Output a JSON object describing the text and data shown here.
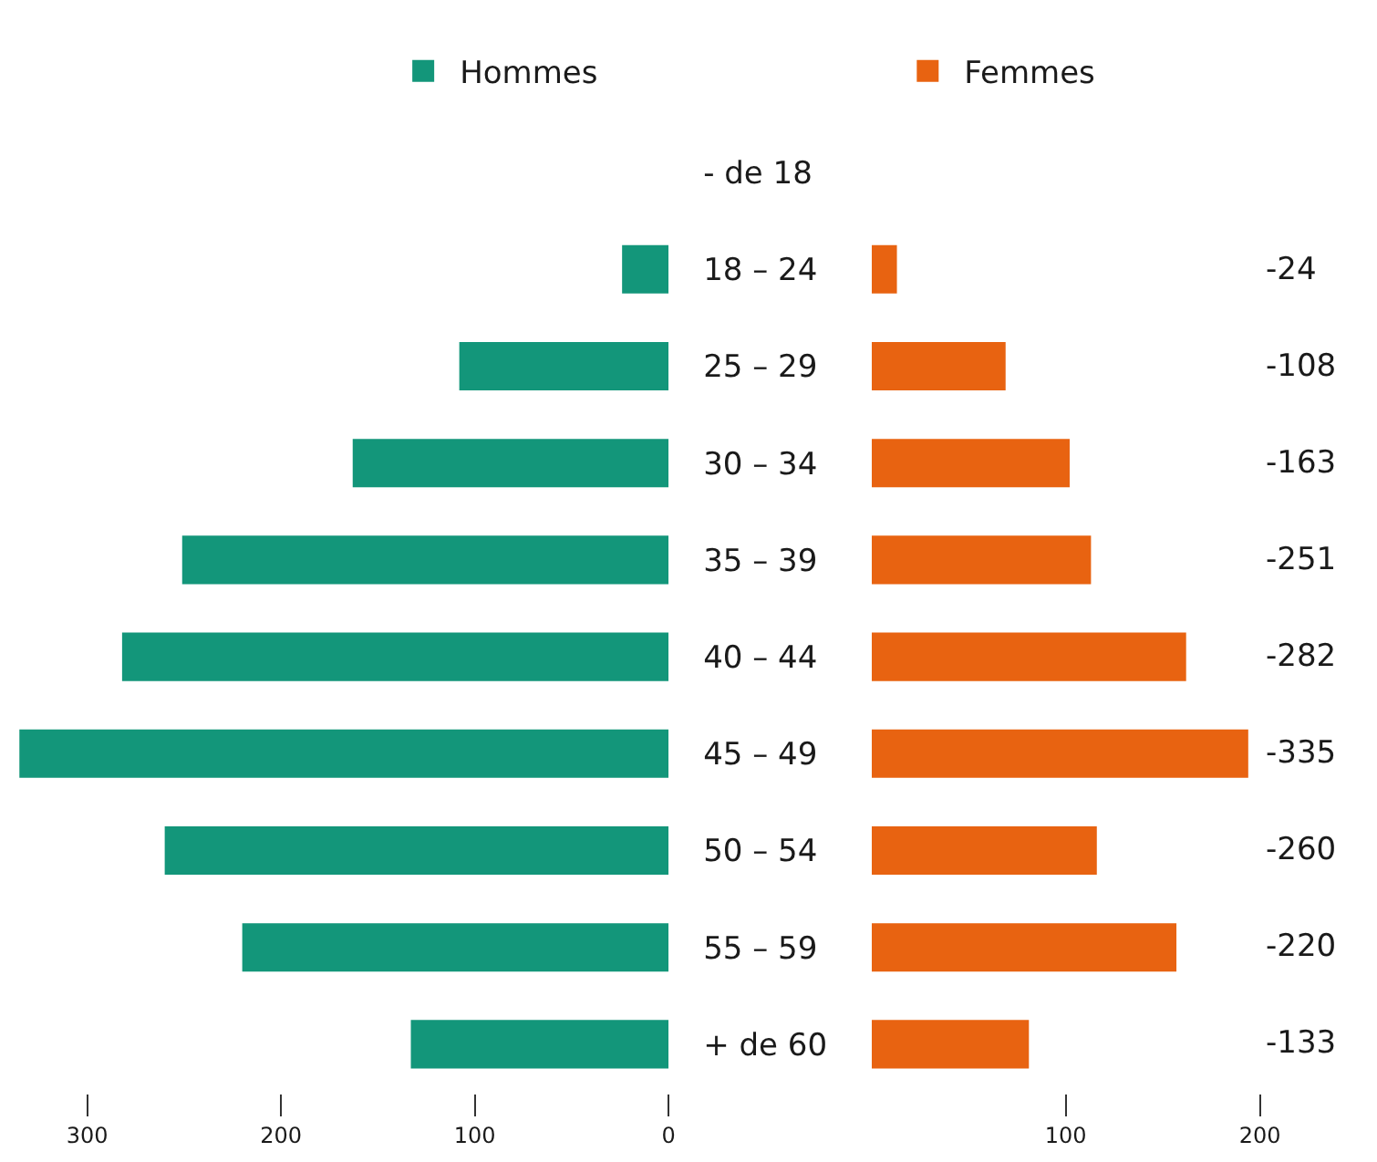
{
  "chart_data": [
    {
      "type": "bar",
      "orientation": "horizontal",
      "categories": [
        "- de 18",
        "18 – 24",
        "25 – 29",
        "30 – 34",
        "35 – 39",
        "40 – 44",
        "45 – 49",
        "50 – 54",
        "55 – 59",
        "+ de 60"
      ],
      "series": [
        {
          "name": "Hommes",
          "color": "#13967a",
          "values": [
            null,
            -24,
            -108,
            -163,
            -251,
            -282,
            -335,
            -260,
            -220,
            -133
          ]
        }
      ],
      "annotations": [
        "-24",
        "-108",
        "-163",
        "-251",
        "-282",
        "-335",
        "-260",
        "-220",
        "-133"
      ],
      "xlim": [
        -345,
        0
      ],
      "xticks": [
        {
          "value": -300,
          "label": "300"
        },
        {
          "value": -200,
          "label": "200"
        },
        {
          "value": -100,
          "label": "100"
        },
        0
      ],
      "legend": "top"
    },
    {
      "type": "bar",
      "orientation": "horizontal",
      "categories": [
        null,
        null,
        null,
        null,
        null,
        null,
        null,
        null,
        null,
        null
      ],
      "series": [
        {
          "name": "Femmes",
          "color": "#e86311",
          "values": [
            null,
            13,
            69,
            102,
            113,
            162,
            194,
            116,
            157,
            81
          ]
        }
      ],
      "xlim": [
        0,
        200
      ],
      "xticks": [
        100,
        200
      ],
      "legend": "top",
      "tick_labels": "x"
    }
  ]
}
